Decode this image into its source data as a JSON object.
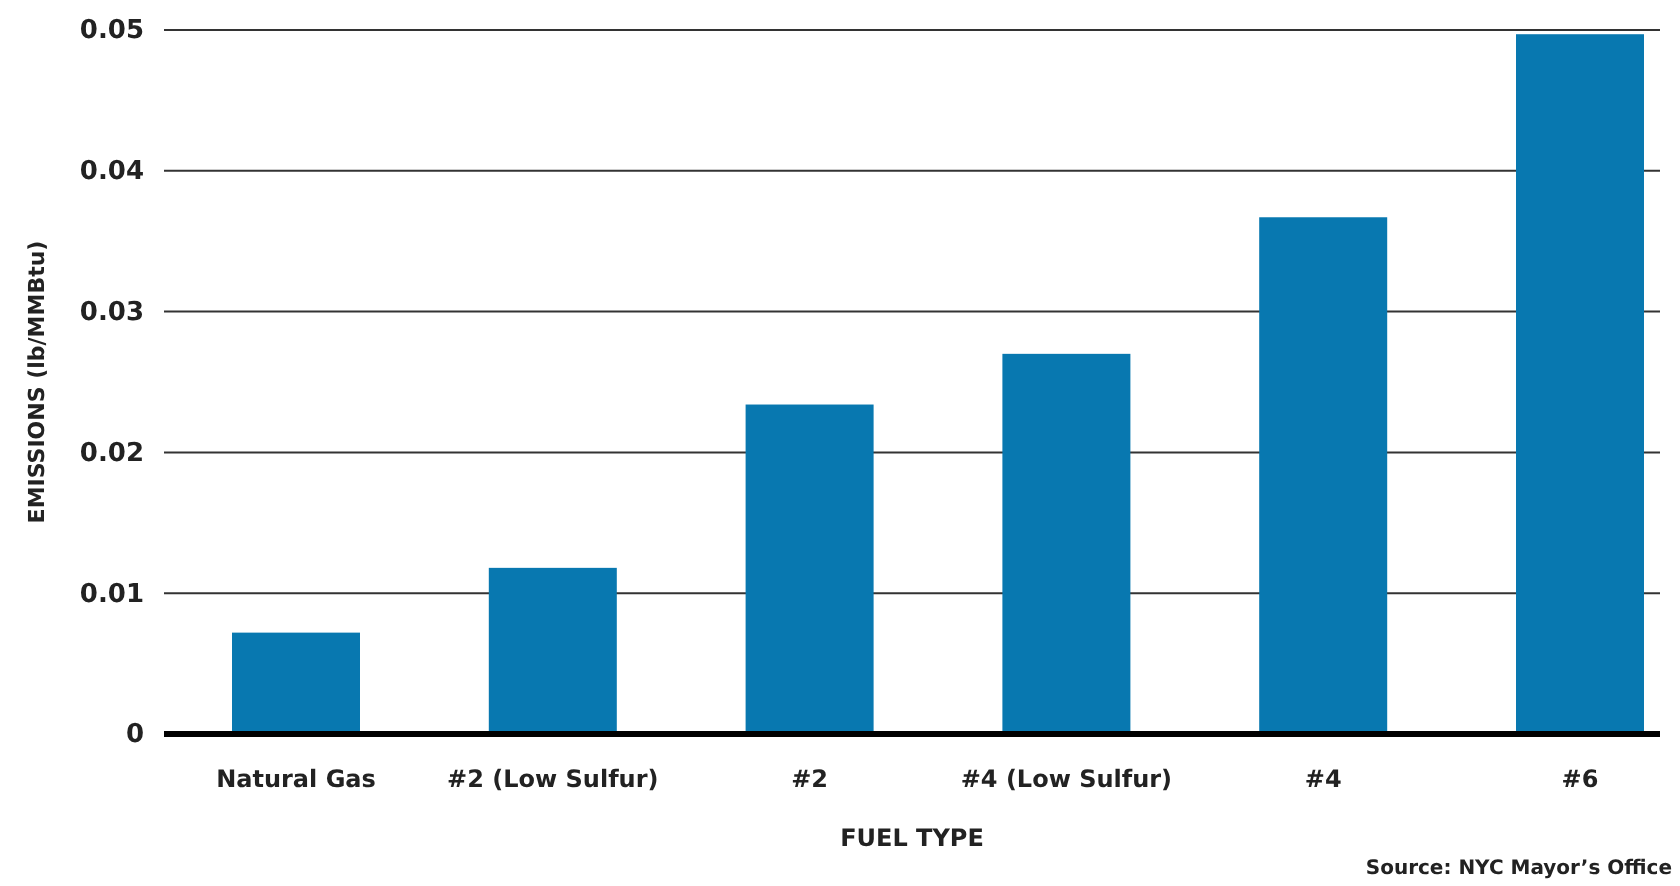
{
  "chart_data": {
    "type": "bar",
    "xlabel": "FUEL TYPE",
    "ylabel": "EMISSIONS (lb/MMBtu)",
    "categories": [
      "Natural Gas",
      "#2 (Low Sulfur)",
      "#2",
      "#4 (Low Sulfur)",
      "#4",
      "#6"
    ],
    "values": [
      0.0072,
      0.0118,
      0.0234,
      0.027,
      0.0367,
      0.0497
    ],
    "color": "#0878b0",
    "ylim": [
      0,
      0.05
    ],
    "yticks": [
      0,
      0.01,
      0.02,
      0.03,
      0.04,
      0.05
    ],
    "grid": "y",
    "annotations": [
      "Source: NYC Mayor’s Office"
    ]
  }
}
